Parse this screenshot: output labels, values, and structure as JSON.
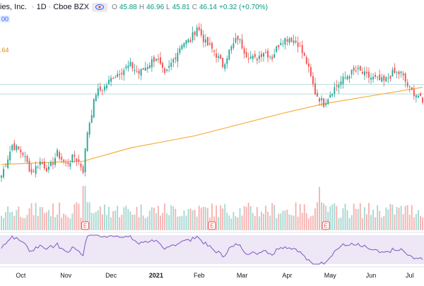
{
  "header": {
    "title": "ies, Inc.",
    "interval": "1D",
    "exchange": "Cboe BZX",
    "ohlc": {
      "open_label": "O",
      "open": "45.88",
      "high_label": "H",
      "high": "46.96",
      "low_label": "L",
      "low": "45.81",
      "close_label": "C",
      "close": "46.14",
      "change": "+0.32 (+0.70%)"
    },
    "price_badge": "00",
    "ma_tag": ".64"
  },
  "colors": {
    "up": "#26a69a",
    "down": "#ef5350",
    "ma": "#f5b041",
    "rsi_line": "#7e57c2",
    "rsi_band": "#ede7f6",
    "hline": "#b2dfdb"
  },
  "chart_data": {
    "type": "candlestick",
    "price_range": [
      20,
      52
    ],
    "x_axis_labels": [
      "Oct",
      "Nov",
      "Dec",
      "2021",
      "Feb",
      "Mar",
      "Apr",
      "May",
      "Jun",
      "Jul"
    ],
    "anchors": [
      {
        "i": 0,
        "c": 23.0
      },
      {
        "i": 5,
        "c": 28.5
      },
      {
        "i": 10,
        "c": 27.0
      },
      {
        "i": 14,
        "c": 23.5
      },
      {
        "i": 18,
        "c": 25.5
      },
      {
        "i": 22,
        "c": 24.0
      },
      {
        "i": 26,
        "c": 27.0
      },
      {
        "i": 30,
        "c": 25.0
      },
      {
        "i": 34,
        "c": 26.5
      },
      {
        "i": 36,
        "c": 25.5
      },
      {
        "i": 38,
        "c": 24.0
      },
      {
        "i": 40,
        "c": 31.0
      },
      {
        "i": 44,
        "c": 38.0
      },
      {
        "i": 48,
        "c": 39.0
      },
      {
        "i": 52,
        "c": 41.0
      },
      {
        "i": 56,
        "c": 42.0
      },
      {
        "i": 60,
        "c": 43.0
      },
      {
        "i": 64,
        "c": 41.5
      },
      {
        "i": 68,
        "c": 43.0
      },
      {
        "i": 72,
        "c": 44.5
      },
      {
        "i": 76,
        "c": 41.0
      },
      {
        "i": 80,
        "c": 44.0
      },
      {
        "i": 84,
        "c": 47.0
      },
      {
        "i": 88,
        "c": 47.5
      },
      {
        "i": 91,
        "c": 50.0
      },
      {
        "i": 95,
        "c": 47.0
      },
      {
        "i": 99,
        "c": 45.5
      },
      {
        "i": 103,
        "c": 43.0
      },
      {
        "i": 106,
        "c": 45.5
      },
      {
        "i": 110,
        "c": 48.0
      },
      {
        "i": 114,
        "c": 45.0
      },
      {
        "i": 118,
        "c": 44.0
      },
      {
        "i": 122,
        "c": 45.5
      },
      {
        "i": 126,
        "c": 44.5
      },
      {
        "i": 130,
        "c": 47.5
      },
      {
        "i": 134,
        "c": 48.0
      },
      {
        "i": 138,
        "c": 47.0
      },
      {
        "i": 142,
        "c": 43.5
      },
      {
        "i": 146,
        "c": 38.0
      },
      {
        "i": 150,
        "c": 36.0
      },
      {
        "i": 154,
        "c": 38.5
      },
      {
        "i": 158,
        "c": 40.0
      },
      {
        "i": 162,
        "c": 41.5
      },
      {
        "i": 166,
        "c": 42.0
      },
      {
        "i": 170,
        "c": 41.0
      },
      {
        "i": 174,
        "c": 40.5
      },
      {
        "i": 178,
        "c": 40.0
      },
      {
        "i": 182,
        "c": 41.5
      },
      {
        "i": 186,
        "c": 41.5
      },
      {
        "i": 190,
        "c": 38.5
      },
      {
        "i": 194,
        "c": 37.5
      },
      {
        "i": 196,
        "c": 36.0
      }
    ],
    "candle_count": 197,
    "moving_average": [
      {
        "i": 0,
        "v": 25.0
      },
      {
        "i": 30,
        "v": 25.5
      },
      {
        "i": 38,
        "v": 25.6
      },
      {
        "i": 60,
        "v": 28.0
      },
      {
        "i": 90,
        "v": 30.2
      },
      {
        "i": 110,
        "v": 32.2
      },
      {
        "i": 130,
        "v": 34.2
      },
      {
        "i": 150,
        "v": 36.0
      },
      {
        "i": 170,
        "v": 37.3
      },
      {
        "i": 196,
        "v": 39.0
      }
    ],
    "horizontal_lines": [
      39.5,
      37.8
    ],
    "volume_markers": [
      {
        "i": 39,
        "label": "E"
      },
      {
        "i": 98,
        "label": "E"
      },
      {
        "i": 151,
        "label": "E"
      }
    ]
  }
}
